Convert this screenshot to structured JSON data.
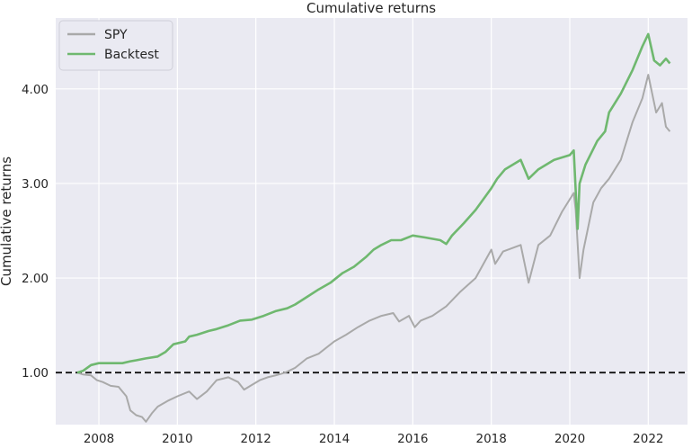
{
  "chart_data": {
    "type": "line",
    "title": "Cumulative returns",
    "xlabel": "",
    "ylabel": "Cumulative returns",
    "xlim": [
      2006.9,
      2023.0
    ],
    "ylim": [
      0.45,
      4.75
    ],
    "x_ticks": [
      2008,
      2010,
      2012,
      2014,
      2016,
      2018,
      2020,
      2022
    ],
    "x_tick_labels": [
      "2008",
      "2010",
      "2012",
      "2014",
      "2016",
      "2018",
      "2020",
      "2022"
    ],
    "y_ticks": [
      1.0,
      2.0,
      3.0,
      4.0
    ],
    "y_tick_labels": [
      "1.00",
      "2.00",
      "3.00",
      "4.00"
    ],
    "grid": true,
    "legend_position": "top-left",
    "reference_line": {
      "y": 1.0,
      "style": "dashed",
      "color": "#000000"
    },
    "colors": {
      "background": "#eaeaf2",
      "grid": "#ffffff",
      "spy": "#a9a9a9",
      "backtest": "#6fb86f"
    },
    "series": [
      {
        "name": "SPY",
        "x": [
          2007.45,
          2007.6,
          2007.8,
          2007.95,
          2008.1,
          2008.3,
          2008.5,
          2008.7,
          2008.8,
          2008.95,
          2009.1,
          2009.2,
          2009.35,
          2009.5,
          2009.75,
          2010.0,
          2010.3,
          2010.5,
          2010.75,
          2011.0,
          2011.3,
          2011.55,
          2011.7,
          2011.9,
          2012.1,
          2012.3,
          2012.5,
          2012.75,
          2013.0,
          2013.3,
          2013.6,
          2014.0,
          2014.3,
          2014.6,
          2014.9,
          2015.2,
          2015.5,
          2015.65,
          2015.9,
          2016.05,
          2016.2,
          2016.5,
          2016.85,
          2017.2,
          2017.6,
          2018.0,
          2018.1,
          2018.3,
          2018.75,
          2018.95,
          2019.2,
          2019.5,
          2019.8,
          2020.1,
          2020.15,
          2020.25,
          2020.35,
          2020.6,
          2020.8,
          2021.0,
          2021.3,
          2021.6,
          2021.85,
          2022.0,
          2022.2,
          2022.35,
          2022.45,
          2022.55
        ],
        "values": [
          1.0,
          0.98,
          0.97,
          0.92,
          0.9,
          0.86,
          0.85,
          0.75,
          0.6,
          0.55,
          0.53,
          0.48,
          0.57,
          0.64,
          0.7,
          0.75,
          0.8,
          0.72,
          0.8,
          0.92,
          0.95,
          0.9,
          0.82,
          0.87,
          0.92,
          0.95,
          0.97,
          1.0,
          1.05,
          1.15,
          1.2,
          1.33,
          1.4,
          1.48,
          1.55,
          1.6,
          1.63,
          1.54,
          1.6,
          1.48,
          1.55,
          1.6,
          1.7,
          1.85,
          2.0,
          2.3,
          2.15,
          2.28,
          2.35,
          1.95,
          2.35,
          2.45,
          2.7,
          2.9,
          2.72,
          2.0,
          2.3,
          2.8,
          2.95,
          3.05,
          3.25,
          3.65,
          3.9,
          4.15,
          3.75,
          3.85,
          3.6,
          3.55
        ]
      },
      {
        "name": "Backtest",
        "x": [
          2007.45,
          2007.6,
          2007.8,
          2008.0,
          2008.3,
          2008.6,
          2008.8,
          2008.95,
          2009.2,
          2009.5,
          2009.7,
          2009.9,
          2010.2,
          2010.3,
          2010.5,
          2010.8,
          2011.0,
          2011.3,
          2011.6,
          2011.9,
          2012.2,
          2012.5,
          2012.8,
          2013.0,
          2013.3,
          2013.6,
          2013.9,
          2014.2,
          2014.5,
          2014.8,
          2015.0,
          2015.2,
          2015.45,
          2015.7,
          2016.0,
          2016.3,
          2016.7,
          2016.85,
          2017.0,
          2017.3,
          2017.6,
          2018.0,
          2018.15,
          2018.35,
          2018.75,
          2018.95,
          2019.2,
          2019.6,
          2020.0,
          2020.1,
          2020.2,
          2020.25,
          2020.4,
          2020.7,
          2020.9,
          2021.0,
          2021.3,
          2021.6,
          2021.85,
          2022.0,
          2022.15,
          2022.3,
          2022.45,
          2022.55
        ],
        "values": [
          1.0,
          1.02,
          1.08,
          1.1,
          1.1,
          1.1,
          1.12,
          1.13,
          1.15,
          1.17,
          1.22,
          1.3,
          1.33,
          1.38,
          1.4,
          1.44,
          1.46,
          1.5,
          1.55,
          1.56,
          1.6,
          1.65,
          1.68,
          1.72,
          1.8,
          1.88,
          1.95,
          2.05,
          2.12,
          2.22,
          2.3,
          2.35,
          2.4,
          2.4,
          2.45,
          2.43,
          2.4,
          2.36,
          2.45,
          2.58,
          2.72,
          2.95,
          3.05,
          3.15,
          3.25,
          3.05,
          3.15,
          3.25,
          3.3,
          3.35,
          2.52,
          3.0,
          3.2,
          3.45,
          3.55,
          3.75,
          3.95,
          4.2,
          4.45,
          4.58,
          4.3,
          4.25,
          4.32,
          4.27
        ]
      }
    ]
  }
}
